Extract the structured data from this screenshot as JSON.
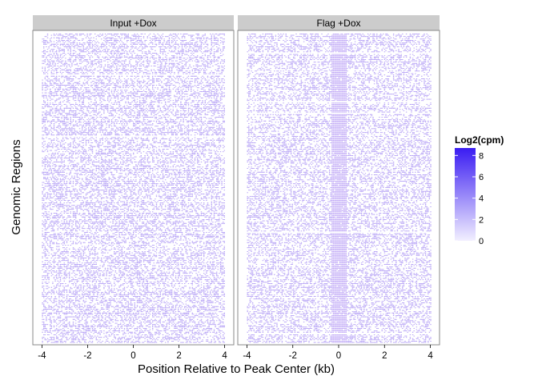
{
  "chart_data": {
    "type": "heatmap",
    "xlabel": "Position Relative to Peak Center (kb)",
    "ylabel": "Genomic Regions",
    "xlim": [
      -4.4,
      4.4
    ],
    "x_ticks": [
      -4,
      -2,
      0,
      2,
      4
    ],
    "x_tick_labels": [
      "-4",
      "-2",
      "0",
      "2",
      "4"
    ],
    "y_tick_labels": [],
    "grid": false,
    "facets": [
      {
        "label": "Input +Dox",
        "center_enrichment": 0.0,
        "background_density": 0.45
      },
      {
        "label": "Flag +Dox",
        "center_enrichment": 0.9,
        "center_halfwidth_kb": 0.35,
        "background_density": 0.42
      }
    ],
    "legend": {
      "title": "Log2(cpm)",
      "ticks": [
        8,
        6,
        4,
        2,
        0
      ],
      "tick_labels": [
        "8",
        "6",
        "4",
        "2",
        "0"
      ],
      "range": [
        0,
        8.7
      ],
      "color_low": "#f2efff",
      "color_high": "#3a1cf2",
      "position": "right"
    },
    "colors": {
      "strip_bg": "#cccccc",
      "cell_color": "#9a7ff2",
      "center_color": "#b79cf5"
    }
  }
}
